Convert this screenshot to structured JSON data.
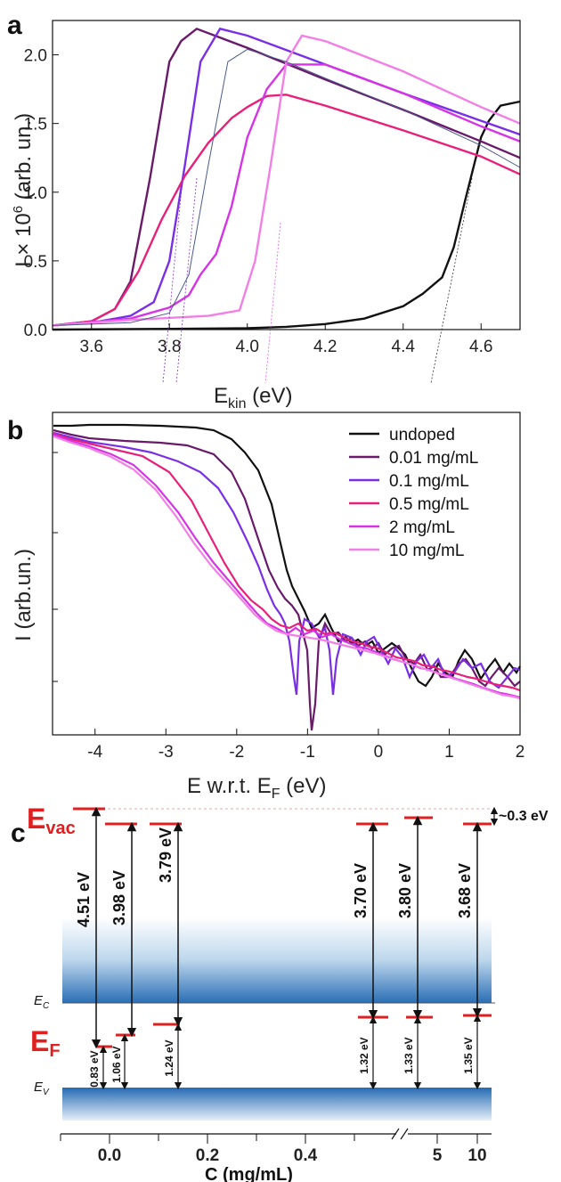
{
  "figure": {
    "colors": {
      "undoped": "#111111",
      "c001": "#6a1a6a",
      "c01": "#7a2ee6",
      "c05": "#e8207a",
      "c2": "#d633e6",
      "c10": "#f27fe6",
      "guide": "#4a5a8a",
      "level": "#e02020",
      "band_dark": "#2a6eb5"
    }
  },
  "chart_data": [
    {
      "panel": "a",
      "type": "line",
      "xlabel": "E",
      "xlabel_sub": "kin",
      "xlabel_unit": " (eV)",
      "ylabel": "I × 10",
      "ylabel_sup": "6",
      "ylabel_unit": " (arb. un.)",
      "xlim": [
        3.5,
        4.7
      ],
      "ylim": [
        0,
        2.25
      ],
      "xticks": [
        "3.6",
        "3.8",
        "4.0",
        "4.2",
        "4.4",
        "4.6"
      ],
      "xtick_values": [
        3.6,
        3.8,
        4.0,
        4.2,
        4.4,
        4.6
      ],
      "yticks": [
        "0.0",
        "0.5",
        "1.0",
        "1.5",
        "2.0"
      ],
      "ytick_values": [
        0,
        0.5,
        1.0,
        1.5,
        2.0
      ],
      "series": [
        {
          "key": "undoped",
          "x": [
            3.5,
            3.8,
            4.0,
            4.1,
            4.2,
            4.3,
            4.4,
            4.45,
            4.5,
            4.53,
            4.56,
            4.6,
            4.62,
            4.65,
            4.7
          ],
          "y": [
            0.0,
            0.005,
            0.01,
            0.02,
            0.04,
            0.08,
            0.17,
            0.26,
            0.38,
            0.6,
            0.95,
            1.4,
            1.52,
            1.63,
            1.66
          ]
        },
        {
          "key": "c001",
          "x": [
            3.5,
            3.6,
            3.66,
            3.7,
            3.75,
            3.8,
            3.83,
            3.87,
            4.0,
            4.2,
            4.4,
            4.6,
            4.7
          ],
          "y": [
            0.03,
            0.06,
            0.15,
            0.35,
            1.1,
            1.95,
            2.1,
            2.19,
            2.05,
            1.82,
            1.6,
            1.37,
            1.25
          ]
        },
        {
          "key": "c01",
          "x": [
            3.5,
            3.6,
            3.7,
            3.76,
            3.8,
            3.84,
            3.88,
            3.93,
            4.0,
            4.2,
            4.4,
            4.6,
            4.7
          ],
          "y": [
            0.03,
            0.05,
            0.1,
            0.2,
            0.5,
            1.2,
            1.95,
            2.19,
            2.14,
            1.93,
            1.72,
            1.52,
            1.42
          ]
        },
        {
          "key": "c05",
          "x": [
            3.5,
            3.6,
            3.66,
            3.72,
            3.78,
            3.84,
            3.9,
            3.96,
            4.0,
            4.05,
            4.1,
            4.2,
            4.4,
            4.6,
            4.7
          ],
          "y": [
            0.03,
            0.06,
            0.15,
            0.42,
            0.8,
            1.12,
            1.36,
            1.54,
            1.62,
            1.7,
            1.71,
            1.63,
            1.45,
            1.26,
            1.13
          ]
        },
        {
          "key": "c2",
          "x": [
            3.5,
            3.7,
            3.8,
            3.85,
            3.88,
            3.92,
            3.96,
            4.0,
            4.05,
            4.1,
            4.2,
            4.4,
            4.6,
            4.7
          ],
          "y": [
            0.03,
            0.08,
            0.16,
            0.25,
            0.4,
            0.55,
            0.9,
            1.4,
            1.75,
            1.93,
            1.93,
            1.72,
            1.48,
            1.37
          ]
        },
        {
          "key": "c10",
          "x": [
            3.5,
            3.7,
            3.9,
            3.98,
            4.02,
            4.06,
            4.1,
            4.14,
            4.2,
            4.4,
            4.6,
            4.7
          ],
          "y": [
            0.03,
            0.07,
            0.1,
            0.14,
            0.5,
            1.2,
            1.95,
            2.14,
            2.1,
            1.88,
            1.62,
            1.5
          ]
        },
        {
          "key": "guide",
          "x": [
            3.5,
            3.7,
            3.8,
            3.85,
            3.9,
            3.95,
            4.0,
            4.1,
            4.2,
            4.4,
            4.6,
            4.7
          ],
          "y": [
            0.03,
            0.05,
            0.12,
            0.4,
            1.2,
            1.95,
            2.04,
            1.95,
            1.83,
            1.6,
            1.34,
            1.18
          ]
        }
      ]
    },
    {
      "panel": "b",
      "type": "line",
      "xlabel": "E w.r.t. E",
      "xlabel_sub": "F",
      "xlabel_unit": " (eV)",
      "ylabel": "I (arb.un.)",
      "xlim": [
        -4.6,
        2.0
      ],
      "xticks": [
        "-4",
        "-3",
        "-2",
        "-1",
        "0",
        "1",
        "2"
      ],
      "xtick_values": [
        -4,
        -3,
        -2,
        -1,
        0,
        1,
        2
      ],
      "scale": "log",
      "legend": [
        {
          "key": "undoped",
          "label": "undoped"
        },
        {
          "key": "c001",
          "label": "0.01 mg/mL"
        },
        {
          "key": "c01",
          "label": "0.1 mg/mL"
        },
        {
          "key": "c05",
          "label": "0.5 mg/mL"
        },
        {
          "key": "c2",
          "label": "2 mg/mL"
        },
        {
          "key": "c10",
          "label": "10 mg/mL"
        }
      ],
      "legend_position": "top-right"
    },
    {
      "panel": "c",
      "type": "diagram",
      "xlabel": "C (mg/mL)",
      "xticks": [
        "0.0",
        "0.2",
        "0.4",
        "5",
        "10"
      ],
      "level_labels": {
        "evac": "E",
        "evac_sub": "vac",
        "ef": "E",
        "ef_sub": "F",
        "ec": "E",
        "ec_sub": "C",
        "ev": "E",
        "ev_sub": "V"
      },
      "offset_label": "~0.3 eV",
      "work_functions": [
        "4.51 eV",
        "3.98 eV",
        "3.79 eV",
        "3.70 eV",
        "3.80 eV",
        "3.68 eV"
      ],
      "ef_minus_ev": [
        "0.83 eV",
        "1.06 eV",
        "1.24 eV",
        "1.32 eV",
        "1.33 eV",
        "1.35 eV"
      ]
    }
  ]
}
